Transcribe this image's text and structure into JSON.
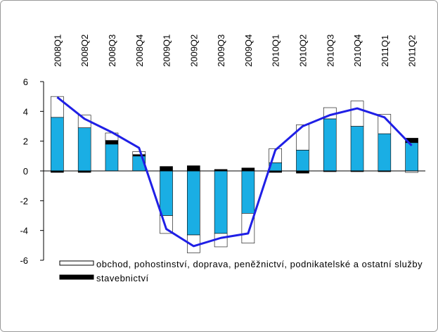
{
  "chart_data": {
    "type": "bar",
    "stacked": true,
    "categories": [
      "2008Q1",
      "2008Q2",
      "2008Q3",
      "2008Q4",
      "2009Q1",
      "2009Q2",
      "2009Q3",
      "2009Q4",
      "2010Q1",
      "2010Q2",
      "2010Q3",
      "2010Q4",
      "2011Q1",
      "2011Q2"
    ],
    "ylim": [
      -6,
      6
    ],
    "yticks": [
      6,
      4,
      2,
      0,
      -2,
      -4,
      -6
    ],
    "series": [
      {
        "color": "#1aaee4",
        "values": [
          3.6,
          2.9,
          1.8,
          1.0,
          -3.0,
          -4.3,
          -4.2,
          -2.85,
          0.55,
          1.4,
          3.5,
          3.0,
          2.5,
          1.9
        ]
      },
      {
        "name": "stavebnictví",
        "color": "#000000",
        "values": [
          -0.1,
          -0.1,
          0.25,
          0.1,
          0.3,
          0.35,
          0.1,
          0.2,
          -0.1,
          -0.15,
          -0.05,
          -0.05,
          -0.05,
          0.3
        ]
      },
      {
        "name": "obchod, pohostinství, doprava, peněžnictví, podnikatelské a ostatní služby",
        "color": "#ffffff",
        "values": [
          1.4,
          0.85,
          0.5,
          0.2,
          -1.2,
          -1.2,
          -0.9,
          -2.0,
          0.95,
          1.7,
          0.75,
          1.7,
          1.3,
          -0.1
        ]
      },
      {
        "type": "line",
        "color": "#1f1fe6",
        "values": [
          4.95,
          3.5,
          2.6,
          1.55,
          -3.9,
          -5.05,
          -4.5,
          -4.2,
          1.4,
          3.0,
          3.75,
          4.2,
          3.6,
          1.7
        ]
      }
    ]
  }
}
